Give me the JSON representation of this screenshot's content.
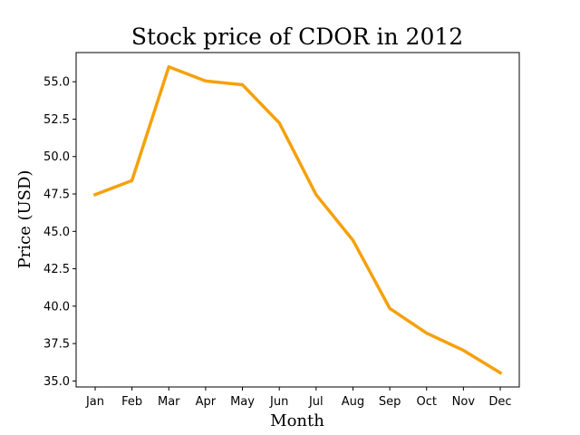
{
  "chart_data": {
    "type": "line",
    "title": "Stock price of CDOR in 2012",
    "xlabel": "Month",
    "ylabel": "Price (USD)",
    "categories": [
      "Jan",
      "Feb",
      "Mar",
      "Apr",
      "May",
      "Jun",
      "Jul",
      "Aug",
      "Sep",
      "Oct",
      "Nov",
      "Dec"
    ],
    "series": [
      {
        "values": [
          47.45,
          48.4,
          56.0,
          55.05,
          54.8,
          52.25,
          47.45,
          44.4,
          39.85,
          38.2,
          37.05,
          35.55
        ],
        "color": "#f5a10b"
      }
    ],
    "ylim": [
      34.6,
      56.95
    ],
    "yticks": [
      35.0,
      37.5,
      40.0,
      42.5,
      45.0,
      47.5,
      50.0,
      52.5,
      55.0
    ],
    "ytick_labels": [
      "35.0",
      "37.5",
      "40.0",
      "42.5",
      "45.0",
      "47.5",
      "50.0",
      "52.5",
      "55.0"
    ],
    "grid": false,
    "legend": "none"
  }
}
